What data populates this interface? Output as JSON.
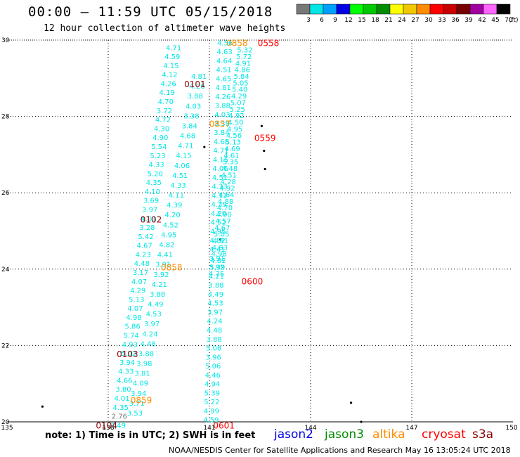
{
  "header": {
    "title": "00:00 – 11:59 UTC 05/15/2018",
    "subtitle": "12 hour collection of altimeter wave heights"
  },
  "legend": {
    "unit_label": "(ft)",
    "bins": [
      {
        "label": "3",
        "color": "#787878"
      },
      {
        "label": "6",
        "color": "#00e6e6"
      },
      {
        "label": "9",
        "color": "#00a0ff"
      },
      {
        "label": "12",
        "color": "#0000e6"
      },
      {
        "label": "15",
        "color": "#00ff00"
      },
      {
        "label": "18",
        "color": "#00c800"
      },
      {
        "label": "21",
        "color": "#008c00"
      },
      {
        "label": "24",
        "color": "#ffff00"
      },
      {
        "label": "27",
        "color": "#f0c800"
      },
      {
        "label": "30",
        "color": "#ff8c00"
      },
      {
        "label": "33",
        "color": "#ff0000"
      },
      {
        "label": "36",
        "color": "#c80000"
      },
      {
        "label": "39",
        "color": "#780000"
      },
      {
        "label": "42",
        "color": "#a000a0"
      },
      {
        "label": "45",
        "color": "#ff64ff"
      },
      {
        "label": "70",
        "color": "#000000"
      }
    ]
  },
  "axes": {
    "lat_ticks": [
      {
        "label": "30",
        "lat": 30
      },
      {
        "label": "28",
        "lat": 28
      },
      {
        "label": "26",
        "lat": 26
      },
      {
        "label": "24",
        "lat": 24
      },
      {
        "label": "22",
        "lat": 22
      },
      {
        "label": "20",
        "lat": 20
      }
    ],
    "lon_ticks": [
      {
        "label": "135",
        "lon": 135
      },
      {
        "label": "138",
        "lon": 138
      },
      {
        "label": "141",
        "lon": 141
      },
      {
        "label": "144",
        "lon": 144
      },
      {
        "label": "147",
        "lon": 147
      },
      {
        "label": "150",
        "lon": 150
      }
    ],
    "lon_range": [
      135,
      150
    ],
    "lat_range": [
      20,
      30
    ]
  },
  "tracks": [
    {
      "color": "#00e6e6",
      "lon_top": 139.94,
      "lat_top": 29.81,
      "lon_bottom": 138.29,
      "lat_bottom": 19.92,
      "values": [
        "4.71",
        "4.59",
        "4.15",
        "4.12",
        "4.26",
        "4.19",
        "4.70",
        "3.72",
        "4.72",
        "4.30",
        "4.90",
        "5.54",
        "5.23",
        "4.33",
        "5.20",
        "4.35",
        "4.10",
        "3.69",
        "3.97",
        "4.01",
        "3.28",
        "5.42",
        "4.67",
        "4.23",
        "4.48",
        "3.17",
        "4.07",
        "4.29",
        "5.13",
        "4.07",
        "4.98",
        "5.86",
        "5.74",
        "4.93",
        "5.02",
        "3.94",
        "4.33",
        "4.66",
        "3.80",
        "4.01",
        "4.35",
        "2.76",
        "3.49"
      ]
    },
    {
      "color": "#00e6e6",
      "lon_top": 140.69,
      "lat_top": 29.06,
      "lon_bottom": 138.79,
      "lat_bottom": 20.24,
      "values": [
        "4.81",
        "4.26",
        "3.88",
        "4.03",
        "3.38",
        "3.84",
        "4.68",
        "4.71",
        "4.15",
        "4.06",
        "4.51",
        "4.33",
        "4.11",
        "4.39",
        "4.20",
        "4.52",
        "4.95",
        "4.82",
        "4.41",
        "3.91",
        "3.92",
        "4.21",
        "3.88",
        "4.49",
        "4.53",
        "3.97",
        "4.24",
        "4.48",
        "3.88",
        "3.98",
        "3.81",
        "4.09",
        "3.94",
        "3.71",
        "3.53"
      ]
    },
    {
      "color": "#00e6e6",
      "lon_top": 141.46,
      "lat_top": 29.94,
      "lon_bottom": 141.05,
      "lat_bottom": 20.06,
      "values": [
        "4.56",
        "4.63",
        "4.64",
        "4.51",
        "4.65",
        "4.81",
        "4.26",
        "3.88",
        "4.03",
        "3.38",
        "3.84",
        "4.68",
        "4.71",
        "4.15",
        "4.06",
        "4.51",
        "4.33",
        "4.11",
        "4.39",
        "4.20",
        "4.52",
        "4.95",
        "4.82",
        "4.41",
        "3.91",
        "3.92",
        "4.21",
        "3.88",
        "4.49",
        "4.53",
        "3.97",
        "4.24",
        "4.48",
        "3.88",
        "5.08",
        "3.96",
        "5.06",
        "4.46",
        "4.94",
        "5.39",
        "5.22",
        "4.99",
        "4.59"
      ]
    },
    {
      "color": "#00e6e6",
      "lon_top": 142.05,
      "lat_top": 29.75,
      "lon_bottom": 141.21,
      "lat_bottom": 23.89,
      "values": [
        "5.32",
        "5.72",
        "4.91",
        "4.86",
        "5.84",
        "5.05",
        "5.40",
        "4.29",
        "5.07",
        "5.25",
        "4.92",
        "4.50",
        "4.95",
        "4.56",
        "5.13",
        "4.69",
        "4.61",
        "5.35",
        "4.48",
        "4.51",
        "4.28",
        "4.92",
        "4.64",
        "4.88",
        "4.70",
        "4.90",
        "4.57",
        "4.67",
        "5.05",
        "4.91",
        "4.83",
        "4.98",
        "4.82",
        "5.39",
        "4.75"
      ]
    }
  ],
  "time_labels": [
    {
      "text": "0101",
      "color": "#8b0000",
      "lon": 140.57,
      "lat": 28.86
    },
    {
      "text": "0102",
      "color": "#8b0000",
      "lon": 139.27,
      "lat": 25.31
    },
    {
      "text": "0103",
      "color": "#8b0000",
      "lon": 138.57,
      "lat": 21.79
    },
    {
      "text": "0104",
      "color": "#8b0000",
      "lon": 137.95,
      "lat": 19.92
    },
    {
      "text": "0858",
      "color": "#ff8c00",
      "lon": 141.82,
      "lat": 29.94
    },
    {
      "text": "0857",
      "color": "#ff8c00",
      "lon": 141.31,
      "lat": 27.82
    },
    {
      "text": "0858",
      "color": "#ff8c00",
      "lon": 139.88,
      "lat": 24.06
    },
    {
      "text": "0859",
      "color": "#ff8c00",
      "lon": 138.98,
      "lat": 20.58
    },
    {
      "text": "0558",
      "color": "#ff0000",
      "lon": 142.75,
      "lat": 29.94
    },
    {
      "text": "0559",
      "color": "#ff0000",
      "lon": 142.65,
      "lat": 27.45
    },
    {
      "text": "0600",
      "color": "#ff0000",
      "lon": 142.27,
      "lat": 23.69
    },
    {
      "text": "0601",
      "color": "#ff0000",
      "lon": 141.43,
      "lat": 19.92
    }
  ],
  "islands": [
    {
      "lon": 142.55,
      "lat": 27.75
    },
    {
      "lon": 142.62,
      "lat": 27.1
    },
    {
      "lon": 142.65,
      "lat": 26.62
    },
    {
      "lon": 140.85,
      "lat": 27.2
    },
    {
      "lon": 141.32,
      "lat": 24.78
    },
    {
      "lon": 136.05,
      "lat": 20.4
    },
    {
      "lon": 145.2,
      "lat": 20.5
    },
    {
      "lon": 145.5,
      "lat": 20.0
    }
  ],
  "footer": {
    "note": "note: 1) Time is in UTC; 2) SWH is in feet",
    "satellites": [
      {
        "name": "jason2",
        "color": "#0000e6"
      },
      {
        "name": "jason3",
        "color": "#008c00"
      },
      {
        "name": "altika",
        "color": "#ff8c00"
      },
      {
        "name": "cryosat",
        "color": "#ff0000"
      },
      {
        "name": "s3a",
        "color": "#8b0000"
      }
    ],
    "credit": "NOAA/NESDIS Center for Satellite Applications and Research    May 16 13:05:24 UTC 2018"
  }
}
